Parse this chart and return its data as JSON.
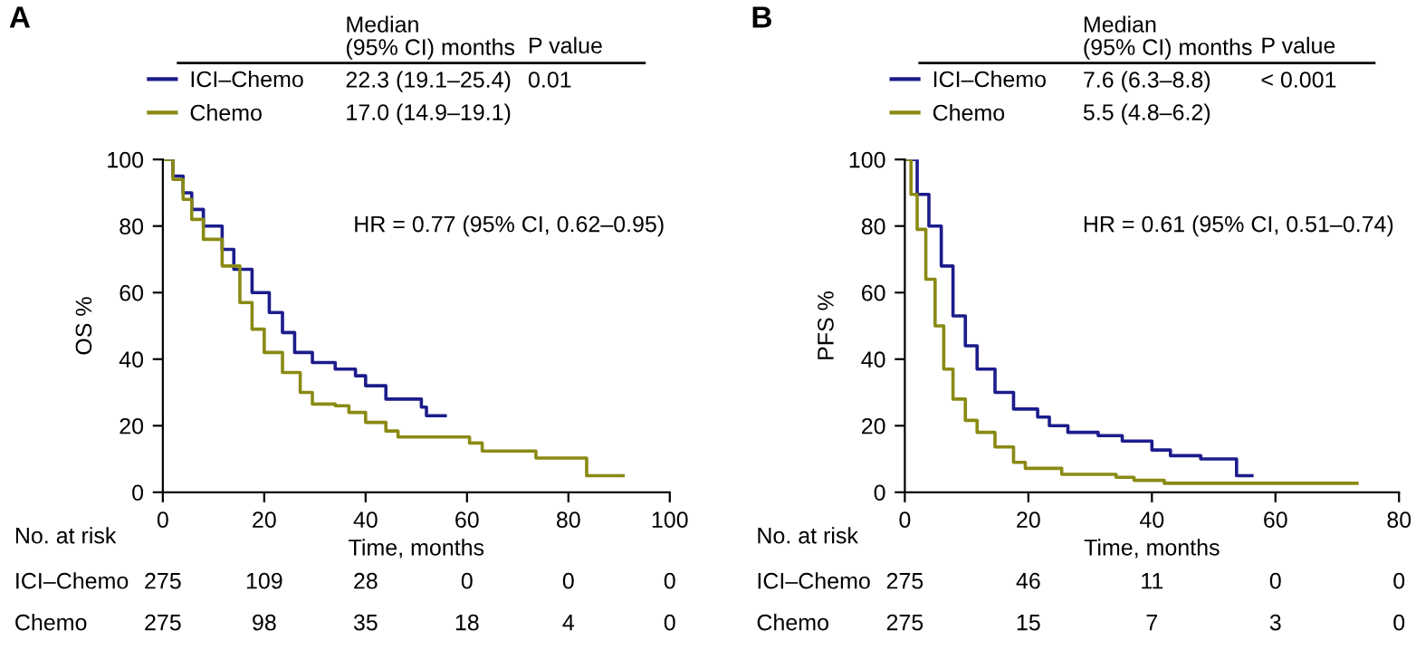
{
  "chart_data": [
    {
      "type": "step",
      "title": "A",
      "xlabel": "Time, months",
      "ylabel": "OS %",
      "legend": "top",
      "xlim": [
        0,
        100
      ],
      "ylim": [
        0,
        100
      ],
      "xticks": [
        0,
        20,
        40,
        60,
        80,
        100
      ],
      "yticks": [
        0,
        20,
        40,
        60,
        80,
        100
      ],
      "series": [
        {
          "name": "ICI–Chemo",
          "color": "#1c1c8c",
          "x": [
            0,
            2,
            4,
            5.7,
            8,
            11.7,
            14,
            17.6,
            21,
            23.6,
            26,
            29.5,
            34,
            38,
            40,
            44,
            48.6,
            51,
            52,
            55.7
          ],
          "values": [
            100,
            95,
            90,
            85,
            80,
            73,
            67,
            60,
            54,
            48,
            42,
            39,
            37,
            35,
            32,
            28,
            28,
            25.6,
            23,
            23
          ]
        },
        {
          "name": "Chemo",
          "color": "#8a8a14",
          "x": [
            0,
            2,
            4,
            5.7,
            8,
            11.7,
            15.2,
            17.6,
            20,
            23.6,
            27.1,
            29.5,
            34,
            36.7,
            40,
            44,
            46.4,
            53,
            60.5,
            63,
            70,
            73.6,
            83,
            83.6,
            90.8
          ],
          "values": [
            100,
            94,
            88,
            82,
            76,
            68,
            57,
            49,
            42,
            36,
            30,
            26.5,
            26,
            24,
            21,
            18.4,
            16.6,
            16.6,
            14.8,
            12.4,
            12.4,
            10.3,
            10.3,
            5,
            5
          ]
        }
      ],
      "annotations": [
        "Median\n(95% CI) months",
        "P value",
        "22.3 (19.1–25.4)",
        "0.01",
        "17.0 (14.9–19.1)",
        "HR = 0.77 (95% CI, 0.62–0.95)",
        "No. at risk",
        "ICI–Chemo",
        "275",
        "109",
        "28",
        "0",
        "0",
        "0",
        "Chemo",
        "275",
        "98",
        "35",
        "18",
        "4",
        "0"
      ]
    },
    {
      "type": "step",
      "title": "B",
      "xlabel": "Time, months",
      "ylabel": "PFS %",
      "legend": "top",
      "xlim": [
        0,
        80
      ],
      "ylim": [
        0,
        100
      ],
      "xticks": [
        0,
        20,
        40,
        60,
        80
      ],
      "yticks": [
        0,
        20,
        40,
        60,
        80,
        100
      ],
      "series": [
        {
          "name": "ICI–Chemo",
          "color": "#1c1c8c",
          "x": [
            0,
            2,
            3.9,
            5.9,
            7.8,
            9.8,
            11.7,
            14.6,
            17.6,
            21.5,
            23.4,
            26.4,
            31.3,
            35.2,
            40,
            43,
            47.9,
            53.7,
            56.2
          ],
          "values": [
            100,
            89.5,
            80,
            68,
            53,
            44,
            37,
            30,
            25,
            22.6,
            20,
            18,
            17,
            15.4,
            12.7,
            11,
            10,
            5,
            5
          ]
        },
        {
          "name": "Chemo",
          "color": "#8a8a14",
          "x": [
            0,
            1,
            2,
            3.4,
            4.9,
            6.3,
            7.8,
            9.8,
            11.7,
            14.6,
            17.6,
            19.5,
            25.4,
            34.2,
            37.1,
            42,
            73.2
          ],
          "values": [
            100,
            89.5,
            79,
            64,
            50,
            37,
            28,
            21.6,
            18,
            13.6,
            9,
            7.2,
            5.4,
            4.5,
            3.6,
            2.7,
            2.7
          ]
        }
      ],
      "annotations": [
        "Median\n(95% CI) months",
        "P value",
        "7.6 (6.3–8.8)",
        "< 0.001",
        "5.5 (4.8–6.2)",
        "HR = 0.61 (95% CI, 0.51–0.74)",
        "No. at risk",
        "ICI–Chemo",
        "275",
        "46",
        "11",
        "0",
        "0",
        "Chemo",
        "275",
        "15",
        "7",
        "3",
        "0"
      ]
    }
  ]
}
